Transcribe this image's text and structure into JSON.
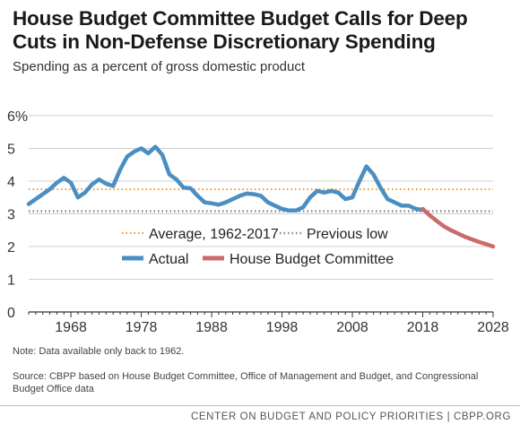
{
  "header": {
    "title": "House Budget Committee Budget Calls for Deep Cuts in Non-Defense Discretionary Spending",
    "subtitle": "Spending as a percent of gross domestic product"
  },
  "chart_data": {
    "type": "line",
    "title": "House Budget Committee Budget Calls for Deep Cuts in Non-Defense Discretionary Spending",
    "subtitle": "Spending as a percent of gross domestic product",
    "xlabel": "",
    "ylabel": "",
    "xlim": [
      1962,
      2028
    ],
    "ylim": [
      0,
      6
    ],
    "x_ticks": [
      "1968",
      "1978",
      "1988",
      "1998",
      "2008",
      "2018",
      "2028"
    ],
    "y_ticks": [
      "0",
      "1",
      "2",
      "3",
      "4",
      "5",
      "6%"
    ],
    "grid": true,
    "legend_position": "bottom-right",
    "series": [
      {
        "name": "Actual",
        "color": "#4a8ec2",
        "x": [
          1962,
          1963,
          1964,
          1965,
          1966,
          1967,
          1968,
          1969,
          1970,
          1971,
          1972,
          1973,
          1974,
          1975,
          1976,
          1977,
          1978,
          1979,
          1980,
          1981,
          1982,
          1983,
          1984,
          1985,
          1986,
          1987,
          1988,
          1989,
          1990,
          1991,
          1992,
          1993,
          1994,
          1995,
          1996,
          1997,
          1998,
          1999,
          2000,
          2001,
          2002,
          2003,
          2004,
          2005,
          2006,
          2007,
          2008,
          2009,
          2010,
          2011,
          2012,
          2013,
          2014,
          2015,
          2016,
          2017,
          2018
        ],
        "y": [
          3.3,
          3.45,
          3.6,
          3.75,
          3.95,
          4.1,
          3.95,
          3.5,
          3.65,
          3.9,
          4.05,
          3.92,
          3.85,
          4.35,
          4.75,
          4.9,
          5.0,
          4.85,
          5.05,
          4.8,
          4.2,
          4.05,
          3.8,
          3.78,
          3.55,
          3.35,
          3.32,
          3.28,
          3.35,
          3.45,
          3.55,
          3.62,
          3.6,
          3.55,
          3.35,
          3.25,
          3.15,
          3.1,
          3.1,
          3.2,
          3.5,
          3.7,
          3.65,
          3.7,
          3.65,
          3.45,
          3.5,
          4.0,
          4.45,
          4.2,
          3.8,
          3.45,
          3.35,
          3.25,
          3.25,
          3.15,
          3.12
        ]
      },
      {
        "name": "House Budget Committee",
        "color": "#cc6a6a",
        "x": [
          2018,
          2019,
          2020,
          2021,
          2022,
          2023,
          2024,
          2025,
          2026,
          2027,
          2028
        ],
        "y": [
          3.15,
          2.95,
          2.78,
          2.62,
          2.5,
          2.4,
          2.3,
          2.22,
          2.14,
          2.07,
          2.0
        ]
      }
    ],
    "reference_lines": [
      {
        "name": "Average, 1962-2017",
        "value": 3.75,
        "color": "#f0962a",
        "style": "dotted"
      },
      {
        "name": "Previous low",
        "value": 3.08,
        "color": "#888888",
        "style": "dotted"
      }
    ]
  },
  "notes": {
    "note": "Note: Data available only back to 1962.",
    "source": "Source: CBPP based on House Budget Committee, Office of Management and Budget, and Congressional Budget Office data"
  },
  "footer": {
    "text": "CENTER ON BUDGET AND POLICY PRIORITIES | CBPP.ORG"
  }
}
